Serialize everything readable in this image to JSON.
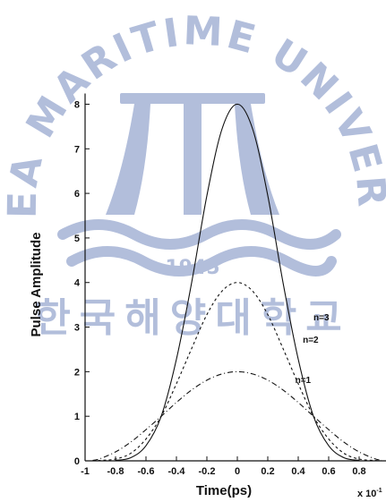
{
  "watermark": {
    "university_name": "KOREA MARITIME UNIVERSITY",
    "year": "1945",
    "korean_name": "한국해양대학교",
    "color": "#7f93c4"
  },
  "chart_data": {
    "type": "line",
    "xlabel": "Time(ps)",
    "ylabel": "Pulse Amplitude",
    "x_multiplier_label": "x 10",
    "x_multiplier_exp": "-1",
    "xlim": [
      -1,
      1
    ],
    "ylim": [
      0,
      8.2
    ],
    "x_ticks": [
      -1,
      -0.8,
      -0.6,
      -0.4,
      -0.2,
      0,
      0.2,
      0.4,
      0.6,
      0.8
    ],
    "x_tick_labels": [
      "-1",
      "-0.8",
      "-0.6",
      "-0.4",
      "-0.2",
      "0",
      "0.2",
      "0.4",
      "0.6",
      "0.8"
    ],
    "y_ticks": [
      0,
      1,
      2,
      3,
      4,
      5,
      6,
      7,
      8
    ],
    "y_tick_labels": [
      "0",
      "1",
      "2",
      "3",
      "4",
      "5",
      "6",
      "7",
      "8"
    ],
    "grid": false,
    "series": [
      {
        "name": "n=1",
        "label_at": [
          0.38,
          1.75
        ],
        "dash": "6,3,1,3",
        "x": [
          -0.95,
          -0.9,
          -0.8,
          -0.7,
          -0.6,
          -0.5,
          -0.4,
          -0.3,
          -0.2,
          -0.1,
          0,
          0.1,
          0.2,
          0.3,
          0.4,
          0.5,
          0.6,
          0.7,
          0.8,
          0.9,
          0.95
        ],
        "y": [
          0.01,
          0.05,
          0.2,
          0.42,
          0.7,
          1.0,
          1.31,
          1.59,
          1.81,
          1.95,
          2.0,
          1.95,
          1.81,
          1.59,
          1.31,
          1.0,
          0.7,
          0.42,
          0.2,
          0.05,
          0.01
        ]
      },
      {
        "name": "n=2",
        "label_at": [
          0.43,
          2.65
        ],
        "dash": "3,3",
        "x": [
          -0.95,
          -0.9,
          -0.8,
          -0.7,
          -0.6,
          -0.5,
          -0.4,
          -0.3,
          -0.2,
          -0.1,
          0,
          0.1,
          0.2,
          0.3,
          0.4,
          0.5,
          0.6,
          0.7,
          0.8,
          0.9,
          0.95
        ],
        "y": [
          0.0,
          0.01,
          0.04,
          0.17,
          0.49,
          1.0,
          1.73,
          2.52,
          3.28,
          3.81,
          4.0,
          3.81,
          3.28,
          2.52,
          1.73,
          1.0,
          0.49,
          0.17,
          0.04,
          0.01,
          0.0
        ]
      },
      {
        "name": "n=3",
        "label_at": [
          0.5,
          3.15
        ],
        "dash": "",
        "x": [
          -0.8,
          -0.7,
          -0.6,
          -0.5,
          -0.4,
          -0.3,
          -0.2,
          -0.1,
          0,
          0.1,
          0.2,
          0.3,
          0.4,
          0.5,
          0.6,
          0.7,
          0.8
        ],
        "y": [
          0.01,
          0.07,
          0.34,
          1.0,
          2.28,
          4.0,
          5.95,
          7.45,
          8.0,
          7.45,
          5.95,
          4.0,
          2.28,
          1.0,
          0.34,
          0.07,
          0.01
        ]
      }
    ]
  }
}
